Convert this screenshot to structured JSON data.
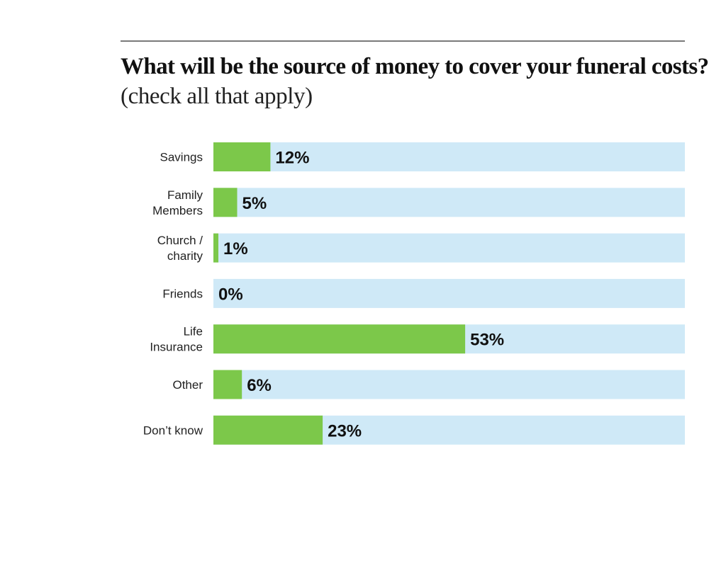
{
  "header": {
    "title": "What will be the source of money to cover your funeral costs?",
    "subtitle": "(check all that apply)"
  },
  "colors": {
    "bar_fill": "#7cc84a",
    "bar_track": "#cfe9f7",
    "rule": "#7a7a7a"
  },
  "chart_data": {
    "type": "bar",
    "orientation": "horizontal",
    "title": "What will be the source of money to cover your funeral costs?",
    "subtitle": "(check all that apply)",
    "categories": [
      [
        "Savings"
      ],
      [
        "Family",
        "Members"
      ],
      [
        "Church /",
        "charity"
      ],
      [
        "Friends"
      ],
      [
        "Life",
        "Insurance"
      ],
      [
        "Other"
      ],
      [
        "Don’t know"
      ]
    ],
    "values": [
      12,
      5,
      1,
      0,
      53,
      6,
      23
    ],
    "value_labels": [
      "12%",
      "5%",
      "1%",
      "0%",
      "53%",
      "6%",
      "23%"
    ],
    "unit": "%",
    "xlim": [
      0,
      100
    ],
    "grid": false,
    "legend": "none"
  }
}
